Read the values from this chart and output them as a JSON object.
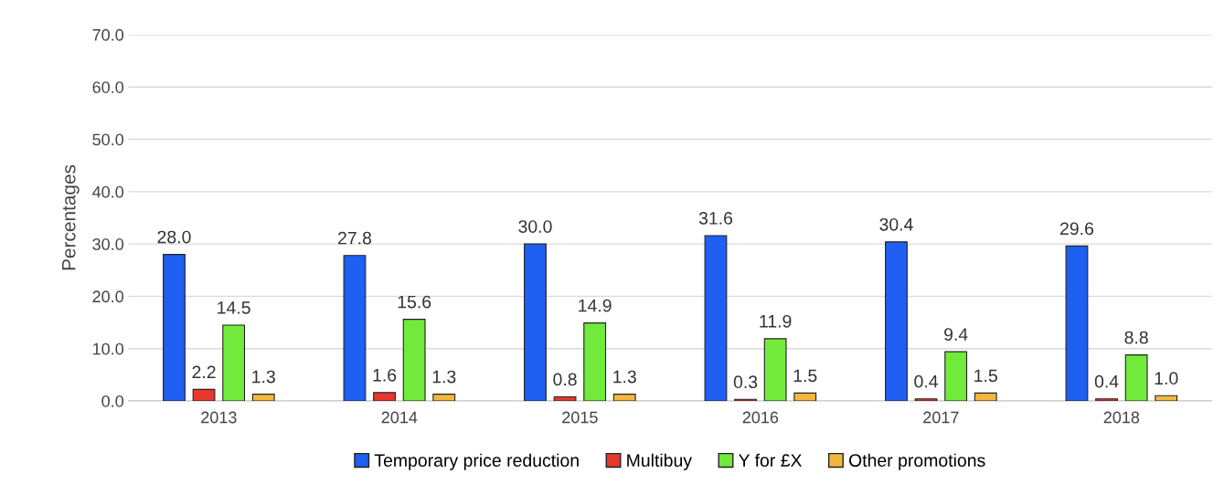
{
  "chart_data": {
    "type": "bar",
    "ylabel": "Percentages",
    "categories": [
      "2013",
      "2014",
      "2015",
      "2016",
      "2017",
      "2018"
    ],
    "series": [
      {
        "name": "Temporary price reduction",
        "color": "#1f5ff2",
        "values": [
          28.0,
          27.8,
          30.0,
          31.6,
          30.4,
          29.6
        ],
        "value_labels": [
          "28.0",
          "27.8",
          "30.0",
          "31.6",
          "30.4",
          "29.6"
        ]
      },
      {
        "name": "Multibuy",
        "color": "#e8382e",
        "values": [
          2.2,
          1.6,
          0.8,
          0.3,
          0.4,
          0.4
        ],
        "value_labels": [
          "2.2",
          "1.6",
          "0.8",
          "0.3",
          "0.4",
          "0.4"
        ]
      },
      {
        "name": "Y for £X",
        "color": "#72ea3c",
        "values": [
          14.5,
          15.6,
          14.9,
          11.9,
          9.4,
          8.8
        ],
        "value_labels": [
          "14.5",
          "15.6",
          "14.9",
          "11.9",
          "9.4",
          "8.8"
        ]
      },
      {
        "name": "Other promotions",
        "color": "#f2b83e",
        "values": [
          1.3,
          1.3,
          1.3,
          1.5,
          1.5,
          1.0
        ],
        "value_labels": [
          "1.3",
          "1.3",
          "1.3",
          "1.5",
          "1.5",
          "1.0"
        ]
      }
    ],
    "ylim": [
      0,
      70
    ],
    "yticks": [
      {
        "value": 0,
        "label": "0.0"
      },
      {
        "value": 10,
        "label": "10.0"
      },
      {
        "value": 20,
        "label": "20.0"
      },
      {
        "value": 30,
        "label": "30.0"
      },
      {
        "value": 40,
        "label": "40.0"
      },
      {
        "value": 50,
        "label": "50.0"
      },
      {
        "value": 60,
        "label": "60.0"
      },
      {
        "value": 70,
        "label": "70.0"
      }
    ],
    "grid": "y",
    "legend": "bottom"
  }
}
